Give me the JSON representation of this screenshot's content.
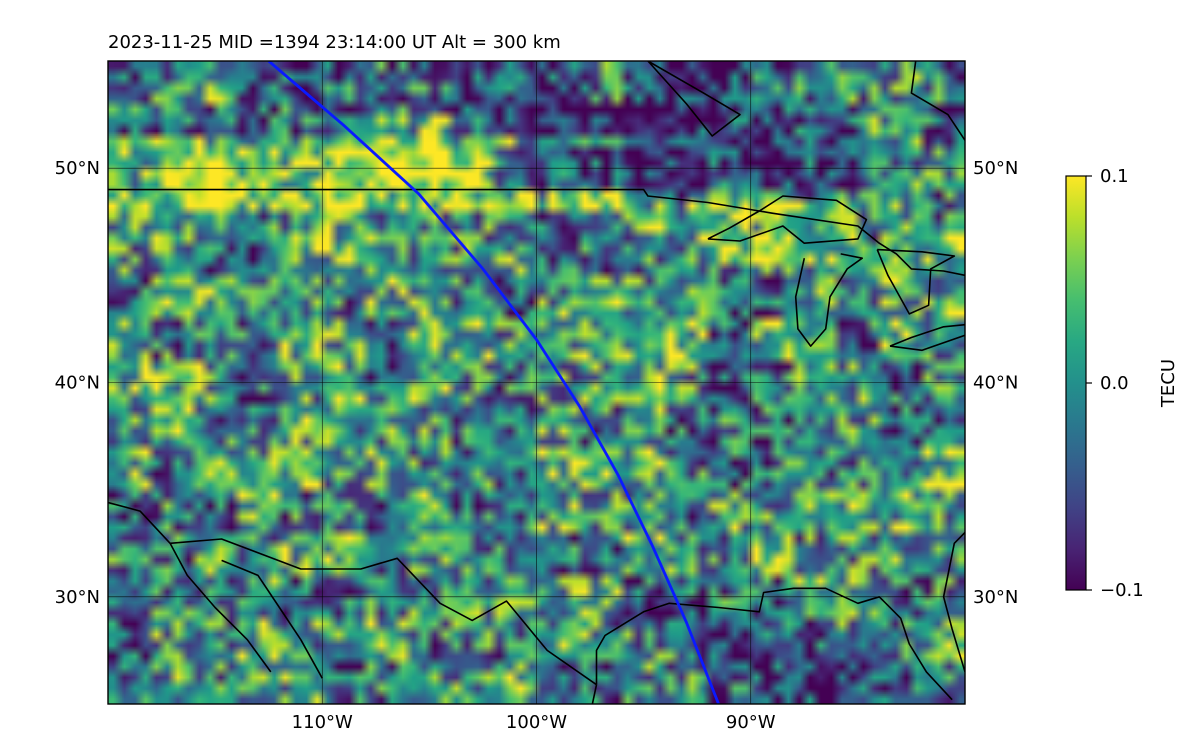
{
  "figure": {
    "title": "2023-11-25  MID =1394    23:14:00  UT  Alt = 300 km"
  },
  "chart_data": {
    "type": "heatmap",
    "title": "2023-11-25  MID =1394    23:14:00  UT  Alt = 300 km",
    "projection": "plate-carree",
    "xlim": [
      -120,
      -80
    ],
    "ylim": [
      25,
      55
    ],
    "x_ticks": [
      {
        "value": -110,
        "label": "110°W"
      },
      {
        "value": -100,
        "label": "100°W"
      },
      {
        "value": -90,
        "label": "90°W"
      }
    ],
    "y_ticks": [
      {
        "value": 30,
        "label": "30°N"
      },
      {
        "value": 40,
        "label": "40°N"
      },
      {
        "value": 50,
        "label": "50°N"
      }
    ],
    "grid": true,
    "colormap": "viridis",
    "colorbar": {
      "label": "TECU",
      "vmin": -0.1,
      "vmax": 0.1,
      "ticks": [
        {
          "value": 0.1,
          "label": "0.1"
        },
        {
          "value": 0.0,
          "label": "0.0"
        },
        {
          "value": -0.1,
          "label": "−0.1"
        }
      ]
    },
    "satellite_track": {
      "color": "#0a1aff",
      "points": [
        [
          -112.5,
          55
        ],
        [
          -109,
          52
        ],
        [
          -105.5,
          48.8
        ],
        [
          -102.5,
          45.3
        ],
        [
          -100,
          42
        ],
        [
          -98,
          38.9
        ],
        [
          -96.2,
          35.7
        ],
        [
          -94.6,
          32.4
        ],
        [
          -93,
          28.8
        ],
        [
          -91.5,
          25
        ]
      ]
    },
    "features": [
      {
        "name": "us-canada-border",
        "points": [
          [
            -120,
            49
          ],
          [
            -95,
            49
          ],
          [
            -94.8,
            48.7
          ],
          [
            -92,
            48.4
          ],
          [
            -89.6,
            48.0
          ],
          [
            -89,
            47.9
          ],
          [
            -85,
            47.3
          ],
          [
            -84,
            46.5
          ],
          [
            -83.2,
            46
          ],
          [
            -82.5,
            45.3
          ],
          [
            -81,
            45.2
          ],
          [
            -80,
            45
          ]
        ]
      },
      {
        "name": "us-mexico-border",
        "points": [
          [
            -117.1,
            32.5
          ],
          [
            -114.7,
            32.7
          ],
          [
            -111,
            31.3
          ],
          [
            -108.2,
            31.3
          ],
          [
            -106.5,
            31.8
          ],
          [
            -104.5,
            29.7
          ],
          [
            -103,
            28.9
          ],
          [
            -101.4,
            29.8
          ],
          [
            -99.5,
            27.5
          ],
          [
            -97.2,
            25.9
          ]
        ]
      },
      {
        "name": "gulf-coast",
        "points": [
          [
            -97.2,
            25.9
          ],
          [
            -97.2,
            27.5
          ],
          [
            -96.8,
            28.2
          ],
          [
            -95,
            29.3
          ],
          [
            -93.8,
            29.7
          ],
          [
            -91.5,
            29.5
          ],
          [
            -89.6,
            29.3
          ],
          [
            -89.4,
            30.2
          ],
          [
            -88,
            30.4
          ],
          [
            -86.5,
            30.4
          ],
          [
            -85,
            29.7
          ],
          [
            -84,
            30.0
          ],
          [
            -83,
            29.0
          ],
          [
            -82.6,
            27.8
          ],
          [
            -81.8,
            26.5
          ],
          [
            -80.6,
            25.2
          ]
        ]
      },
      {
        "name": "atlantic-coast",
        "points": [
          [
            -80,
            26.5
          ],
          [
            -80.6,
            28.5
          ],
          [
            -81,
            30
          ],
          [
            -80.5,
            32.5
          ],
          [
            -80,
            33
          ]
        ]
      },
      {
        "name": "mexico-east-coast",
        "points": [
          [
            -97.2,
            25.9
          ],
          [
            -97.5,
            24.5
          ],
          [
            -97.8,
            22.2
          ]
        ]
      },
      {
        "name": "baja-peninsula",
        "points": [
          [
            -117.1,
            32.5
          ],
          [
            -116.3,
            31
          ],
          [
            -115,
            29.5
          ],
          [
            -113.5,
            28
          ],
          [
            -112.4,
            26.5
          ]
        ]
      },
      {
        "name": "gulf-of-california",
        "points": [
          [
            -114.7,
            31.7
          ],
          [
            -113,
            31
          ],
          [
            -112,
            29.5
          ],
          [
            -111,
            28
          ],
          [
            -110,
            26.2
          ]
        ]
      },
      {
        "name": "pacific-coast",
        "points": [
          [
            -120,
            34.4
          ],
          [
            -118.5,
            34
          ],
          [
            -117.1,
            32.5
          ]
        ]
      },
      {
        "name": "lake-michigan",
        "points": [
          [
            -87.5,
            45.8
          ],
          [
            -87.9,
            44
          ],
          [
            -87.8,
            42.5
          ],
          [
            -87.2,
            41.7
          ],
          [
            -86.5,
            42.5
          ],
          [
            -86.3,
            44
          ],
          [
            -85.5,
            45.3
          ],
          [
            -84.8,
            45.8
          ],
          [
            -85.8,
            46
          ]
        ]
      },
      {
        "name": "lake-huron",
        "points": [
          [
            -84.1,
            46.2
          ],
          [
            -83.6,
            45
          ],
          [
            -82.6,
            43.2
          ],
          [
            -81.7,
            43.6
          ],
          [
            -81.6,
            45.3
          ],
          [
            -80.5,
            45.9
          ],
          [
            -82,
            46.1
          ],
          [
            -84.1,
            46.2
          ]
        ]
      },
      {
        "name": "lake-superior",
        "points": [
          [
            -92,
            46.7
          ],
          [
            -90.5,
            46.6
          ],
          [
            -88.5,
            47.3
          ],
          [
            -87.5,
            46.5
          ],
          [
            -85,
            46.7
          ],
          [
            -84.6,
            47.6
          ],
          [
            -86,
            48.5
          ],
          [
            -88.5,
            48.7
          ],
          [
            -89.6,
            48.0
          ],
          [
            -91,
            47.2
          ],
          [
            -92,
            46.7
          ]
        ]
      },
      {
        "name": "lake-erie",
        "points": [
          [
            -83.5,
            41.7
          ],
          [
            -82,
            41.5
          ],
          [
            -80,
            42.2
          ],
          [
            -79,
            42.8
          ],
          [
            -81,
            42.6
          ],
          [
            -82.5,
            42.1
          ],
          [
            -83.5,
            41.7
          ]
        ]
      },
      {
        "name": "hudson-bay-coast",
        "points": [
          [
            -94.8,
            55
          ],
          [
            -93,
            53
          ],
          [
            -91.8,
            51.5
          ],
          [
            -90.5,
            52.5
          ],
          [
            -92.2,
            53.5
          ],
          [
            -94.8,
            55
          ]
        ]
      },
      {
        "name": "hudson-bay-east",
        "points": [
          [
            -82.3,
            55
          ],
          [
            -82.5,
            53.5
          ],
          [
            -80.8,
            52.5
          ],
          [
            -80,
            51.3
          ]
        ]
      }
    ]
  }
}
